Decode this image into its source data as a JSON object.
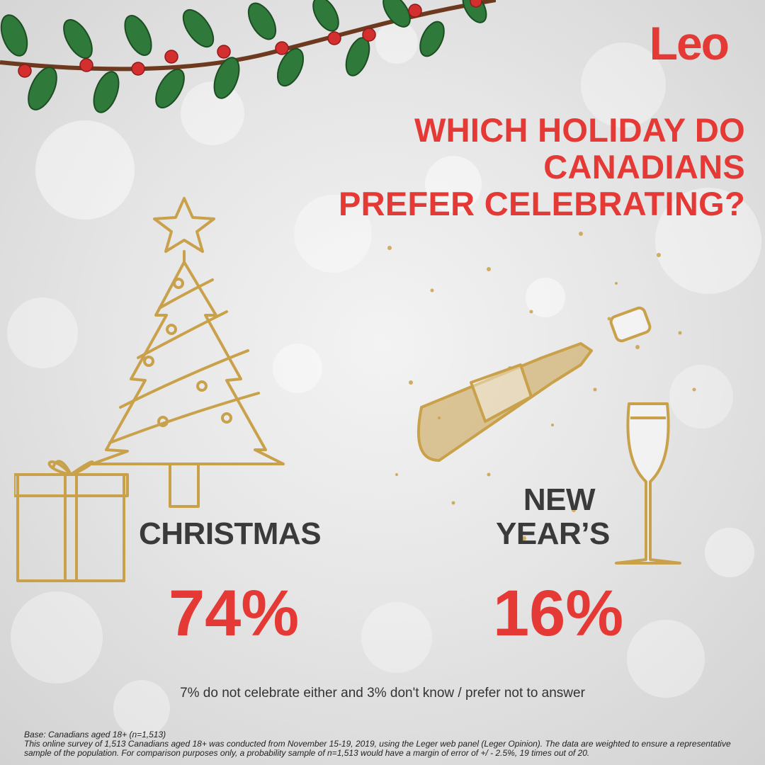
{
  "brand": {
    "logo_text": "Leo",
    "accent_color": "#e53935",
    "gold_color": "#c9a14a"
  },
  "headline": {
    "line1": "WHICH HOLIDAY DO CANADIANS",
    "line2": "PREFER CELEBRATING?"
  },
  "options": [
    {
      "label": "CHRISTMAS",
      "percent": "74%",
      "value": 74,
      "icon": "christmas-tree-and-gift-icon"
    },
    {
      "label_line1": "NEW",
      "label_line2": "YEAR’S",
      "percent": "16%",
      "value": 16,
      "icon": "champagne-bottle-and-glass-icon"
    }
  ],
  "note": "7% do not celebrate either and 3% don't know / prefer not to answer",
  "footnote": {
    "base": "Base: Canadians aged 18+ (n=1,513)",
    "method": "This online survey of 1,513 Canadians aged 18+ was conducted from November 15-19, 2019, using the Leger web panel (Leger Opinion). The data are weighted to ensure a representative sample of the population. For comparison purposes only, a probability sample of n=1,513 would have a margin of error of +/ - 2.5%, 19 times out of 20."
  }
}
